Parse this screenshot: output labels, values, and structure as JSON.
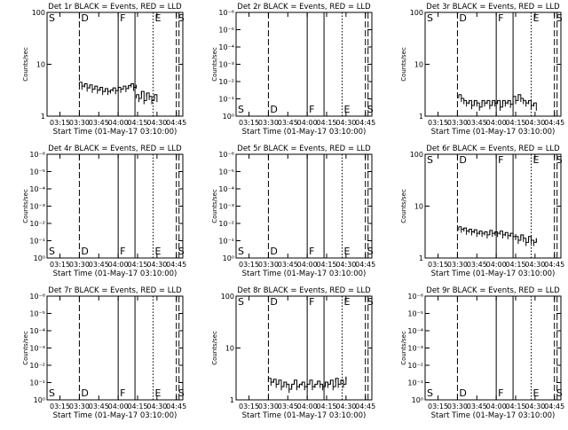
{
  "figure": {
    "xlabel": "Start Time (01-May-17 03:10:00)",
    "ylabel": "Counts/sec",
    "x_ticks": [
      "03:15",
      "03:30",
      "03:45",
      "04:00",
      "04:15",
      "04:30",
      "04:45"
    ],
    "x_range_minutes": [
      185,
      290
    ],
    "markers": [
      {
        "label": "D",
        "x_minutes": 210,
        "style": "dashed"
      },
      {
        "label": "F",
        "x_minutes": 240,
        "style": "solid"
      },
      {
        "label": "",
        "x_minutes": 253,
        "style": "solid"
      },
      {
        "label": "E",
        "x_minutes": 267,
        "style": "dotted"
      },
      {
        "label": "S",
        "x_minutes": 285,
        "style": "dashed"
      }
    ],
    "marker_extra_at_start": {
      "label": "S"
    },
    "colors": {
      "events": "#000000",
      "lld": "#ff0000",
      "axes": "#000000"
    }
  },
  "chart_data": [
    {
      "type": "line",
      "title": "Det 1r BLACK = Events, RED = LLD",
      "y_scale": "log",
      "ylim": [
        1,
        100
      ],
      "y_ticks": [
        {
          "v": 1,
          "t": "1"
        },
        {
          "v": 10,
          "t": "10"
        },
        {
          "v": 100,
          "t": "100"
        }
      ],
      "series": [
        {
          "segments": [
            {
              "x": [
                210,
                212,
                214,
                216,
                218,
                220,
                222,
                224,
                226,
                228,
                230,
                232,
                234,
                236,
                238,
                240,
                242,
                244,
                246,
                248,
                250,
                252,
                254
              ],
              "y": [
                4.5,
                3.8,
                4.2,
                3.5,
                4.0,
                3.3,
                3.8,
                3.2,
                3.6,
                3.0,
                3.4,
                3.0,
                3.2,
                3.5,
                3.1,
                3.6,
                3.3,
                3.8,
                3.4,
                3.9,
                4.2,
                3.6,
                4.0
              ]
            },
            {
              "x": [
                254,
                256,
                258,
                260,
                262,
                264,
                266,
                268,
                270
              ],
              "y": [
                2.6,
                2.2,
                3.0,
                2.0,
                2.8,
                2.4,
                2.0,
                2.6,
                2.2
              ]
            }
          ]
        }
      ]
    },
    {
      "type": "line",
      "title": "Det 2r BLACK = Events, RED = LLD",
      "y_scale": "log",
      "ylim": [
        1,
        1e-06
      ],
      "y_ticks": [
        {
          "v": 1,
          "t": "10⁰"
        },
        {
          "v": 0.1,
          "t": "10⁻¹"
        },
        {
          "v": 0.01,
          "t": "10⁻²"
        },
        {
          "v": 0.001,
          "t": "10⁻³"
        },
        {
          "v": 0.0001,
          "t": "10⁻⁴"
        },
        {
          "v": 1e-05,
          "t": "10⁻⁵"
        },
        {
          "v": 1e-06,
          "t": "10⁻⁶"
        }
      ],
      "series": []
    },
    {
      "type": "line",
      "title": "Det 3r BLACK = Events, RED = LLD",
      "y_scale": "log",
      "ylim": [
        1,
        100
      ],
      "y_ticks": [
        {
          "v": 1,
          "t": "1"
        },
        {
          "v": 10,
          "t": "10"
        },
        {
          "v": 100,
          "t": "100"
        }
      ],
      "series": [
        {
          "segments": [
            {
              "x": [
                211,
                213,
                215,
                217,
                219,
                221,
                223,
                225,
                227,
                229,
                231,
                233,
                235,
                237,
                239,
                241,
                243,
                245,
                247,
                249,
                251,
                253
              ],
              "y": [
                2.6,
                2.2,
                2.0,
                1.8,
                2.0,
                1.6,
                2.0,
                1.8,
                1.5,
                2.0,
                1.8,
                2.0,
                1.6,
                2.0,
                1.8,
                2.0,
                1.5,
                2.0,
                1.8,
                2.0,
                1.7,
                2.0
              ]
            },
            {
              "x": [
                253,
                255,
                257,
                259,
                261,
                263,
                265,
                267,
                269,
                271
              ],
              "y": [
                2.4,
                2.0,
                2.6,
                2.2,
                2.0,
                1.8,
                2.0,
                1.6,
                1.8,
                1.5
              ]
            }
          ]
        }
      ]
    },
    {
      "type": "line",
      "title": "Det 4r BLACK = Events, RED = LLD",
      "y_scale": "log",
      "ylim": [
        1,
        1e-06
      ],
      "y_ticks": [
        {
          "v": 1,
          "t": "10⁰"
        },
        {
          "v": 0.1,
          "t": "10⁻¹"
        },
        {
          "v": 0.01,
          "t": "10⁻²"
        },
        {
          "v": 0.001,
          "t": "10⁻³"
        },
        {
          "v": 0.0001,
          "t": "10⁻⁴"
        },
        {
          "v": 1e-05,
          "t": "10⁻⁵"
        },
        {
          "v": 1e-06,
          "t": "10⁻⁶"
        }
      ],
      "series": []
    },
    {
      "type": "line",
      "title": "Det 5r BLACK = Events, RED = LLD",
      "y_scale": "log",
      "ylim": [
        1,
        1e-06
      ],
      "y_ticks": [
        {
          "v": 1,
          "t": "10⁰"
        },
        {
          "v": 0.1,
          "t": "10⁻¹"
        },
        {
          "v": 0.01,
          "t": "10⁻²"
        },
        {
          "v": 0.001,
          "t": "10⁻³"
        },
        {
          "v": 0.0001,
          "t": "10⁻⁴"
        },
        {
          "v": 1e-05,
          "t": "10⁻⁵"
        },
        {
          "v": 1e-06,
          "t": "10⁻⁶"
        }
      ],
      "series": []
    },
    {
      "type": "line",
      "title": "Det 6r BLACK = Events, RED = LLD",
      "y_scale": "log",
      "ylim": [
        1,
        100
      ],
      "y_ticks": [
        {
          "v": 1,
          "t": "1"
        },
        {
          "v": 10,
          "t": "10"
        },
        {
          "v": 100,
          "t": "100"
        }
      ],
      "series": [
        {
          "segments": [
            {
              "x": [
                211,
                213,
                215,
                217,
                219,
                221,
                223,
                225,
                227,
                229,
                231,
                233,
                235,
                237,
                239,
                241,
                243,
                245,
                247,
                249,
                251,
                253,
                255
              ],
              "y": [
                4.0,
                3.6,
                3.8,
                3.3,
                3.6,
                3.2,
                3.5,
                3.0,
                3.3,
                3.0,
                3.2,
                2.8,
                3.4,
                3.0,
                3.2,
                3.0,
                3.3,
                2.8,
                3.1,
                2.7,
                3.0,
                2.6,
                2.9
              ]
            },
            {
              "x": [
                255,
                257,
                259,
                261,
                263,
                265,
                267,
                269,
                271
              ],
              "y": [
                2.6,
                2.2,
                2.8,
                2.4,
                2.0,
                2.6,
                2.2,
                2.0,
                2.4
              ]
            }
          ]
        }
      ]
    },
    {
      "type": "line",
      "title": "Det 7r BLACK = Events, RED = LLD",
      "y_scale": "log",
      "ylim": [
        1,
        1e-06
      ],
      "y_ticks": [
        {
          "v": 1,
          "t": "10⁰"
        },
        {
          "v": 0.1,
          "t": "10⁻¹"
        },
        {
          "v": 0.01,
          "t": "10⁻²"
        },
        {
          "v": 0.001,
          "t": "10⁻³"
        },
        {
          "v": 0.0001,
          "t": "10⁻⁴"
        },
        {
          "v": 1e-05,
          "t": "10⁻⁵"
        },
        {
          "v": 1e-06,
          "t": "10⁻⁶"
        }
      ],
      "series": []
    },
    {
      "type": "line",
      "title": "Det 8r BLACK = Events, RED = LLD",
      "y_scale": "log",
      "ylim": [
        1,
        100
      ],
      "y_ticks": [
        {
          "v": 1,
          "t": "1"
        },
        {
          "v": 10,
          "t": "10"
        },
        {
          "v": 100,
          "t": "100"
        }
      ],
      "series": [
        {
          "segments": [
            {
              "x": [
                210,
                212,
                214,
                216,
                218,
                220,
                222,
                224,
                226,
                228,
                230,
                232,
                234,
                236,
                238,
                240,
                242,
                244,
                246,
                248,
                250,
                252,
                254,
                256,
                258,
                260,
                262,
                264,
                266,
                268,
                270
              ],
              "y": [
                2.6,
                2.2,
                2.5,
                2.0,
                2.4,
                1.8,
                2.2,
                2.0,
                1.6,
                2.0,
                2.4,
                1.8,
                2.0,
                2.2,
                1.8,
                2.0,
                2.4,
                1.8,
                2.0,
                2.3,
                2.0,
                1.8,
                2.2,
                2.0,
                2.4,
                1.8,
                2.6,
                2.0,
                2.4,
                2.0,
                2.8
              ]
            }
          ]
        }
      ]
    },
    {
      "type": "line",
      "title": "Det 9r BLACK = Events, RED = LLD",
      "y_scale": "log",
      "ylim": [
        1,
        1e-06
      ],
      "y_ticks": [
        {
          "v": 1,
          "t": "10⁰"
        },
        {
          "v": 0.1,
          "t": "10⁻¹"
        },
        {
          "v": 0.01,
          "t": "10⁻²"
        },
        {
          "v": 0.001,
          "t": "10⁻³"
        },
        {
          "v": 0.0001,
          "t": "10⁻⁴"
        },
        {
          "v": 1e-05,
          "t": "10⁻⁵"
        },
        {
          "v": 1e-06,
          "t": "10⁻⁶"
        }
      ],
      "series": []
    }
  ]
}
